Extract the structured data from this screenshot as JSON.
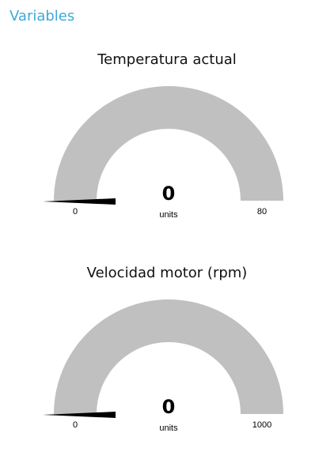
{
  "page": {
    "section_title": "Variables",
    "accent_color": "#3fa9d8"
  },
  "gauges": [
    {
      "title": "Temperatura actual",
      "value": "0",
      "units": "units",
      "min": "0",
      "max": "80",
      "fill_fraction": 0,
      "track_color": "#c0c0c0",
      "needle_color": "#000000"
    },
    {
      "title": "Velocidad motor (rpm)",
      "value": "0",
      "units": "units",
      "min": "0",
      "max": "1000",
      "fill_fraction": 0,
      "track_color": "#c0c0c0",
      "needle_color": "#000000"
    }
  ]
}
